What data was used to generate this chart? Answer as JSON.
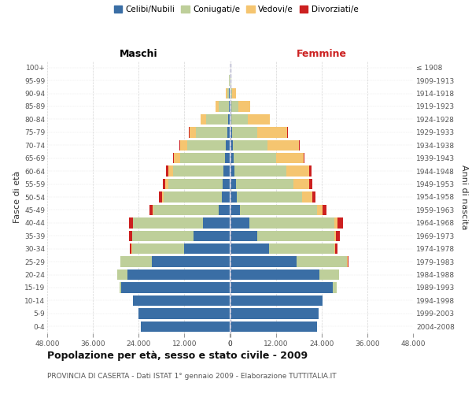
{
  "age_groups": [
    "100+",
    "95-99",
    "90-94",
    "85-89",
    "80-84",
    "75-79",
    "70-74",
    "65-69",
    "60-64",
    "55-59",
    "50-54",
    "45-49",
    "40-44",
    "35-39",
    "30-34",
    "25-29",
    "20-24",
    "15-19",
    "10-14",
    "5-9",
    "0-4"
  ],
  "birth_years": [
    "≤ 1908",
    "1909-1913",
    "1914-1918",
    "1919-1923",
    "1924-1928",
    "1929-1933",
    "1934-1938",
    "1939-1943",
    "1944-1948",
    "1949-1953",
    "1954-1958",
    "1959-1963",
    "1964-1968",
    "1969-1973",
    "1974-1978",
    "1979-1983",
    "1984-1988",
    "1989-1993",
    "1994-1998",
    "1999-2003",
    "2004-2008"
  ],
  "male_celibi": [
    100,
    140,
    220,
    380,
    550,
    800,
    1100,
    1400,
    1700,
    2000,
    2200,
    3000,
    7200,
    9500,
    12000,
    20500,
    27000,
    28500,
    25500,
    24000,
    23500
  ],
  "male_coniugati": [
    50,
    90,
    480,
    2600,
    5800,
    8200,
    10200,
    11800,
    13200,
    14200,
    15200,
    17200,
    18200,
    16200,
    13800,
    8200,
    2600,
    520,
    55,
    8,
    4
  ],
  "male_vedovi": [
    20,
    80,
    350,
    900,
    1400,
    1700,
    1900,
    1650,
    1350,
    850,
    560,
    230,
    110,
    55,
    22,
    11,
    5,
    2,
    1,
    0,
    0
  ],
  "male_divorziati": [
    4,
    10,
    22,
    35,
    55,
    85,
    110,
    220,
    520,
    620,
    720,
    820,
    1050,
    850,
    520,
    160,
    50,
    10,
    2,
    0,
    0
  ],
  "female_nubili": [
    100,
    150,
    190,
    290,
    380,
    490,
    680,
    880,
    1150,
    1480,
    1780,
    2550,
    5100,
    7100,
    10200,
    17500,
    23500,
    27000,
    24200,
    23200,
    22800
  ],
  "female_coniugate": [
    30,
    75,
    420,
    1900,
    4200,
    6700,
    9200,
    11200,
    13700,
    15200,
    17200,
    20200,
    22200,
    20200,
    17200,
    13200,
    5100,
    1050,
    105,
    10,
    4
  ],
  "female_vedove": [
    30,
    160,
    850,
    3100,
    5800,
    7800,
    8200,
    7200,
    5800,
    4100,
    2600,
    1550,
    820,
    420,
    200,
    85,
    21,
    5,
    1,
    0,
    0
  ],
  "female_divorziate": [
    4,
    10,
    22,
    38,
    65,
    105,
    160,
    260,
    620,
    720,
    920,
    1050,
    1550,
    1050,
    620,
    210,
    62,
    11,
    2,
    0,
    0
  ],
  "color_celibi": "#3A6EA5",
  "color_coniugati": "#BECF9A",
  "color_vedovi": "#F5C570",
  "color_divorziati": "#CC2020",
  "xlim": 48000,
  "xticks": [
    48000,
    36000,
    24000,
    12000,
    0
  ],
  "xtick_labels_male": [
    "48.000",
    "36.000",
    "24.000",
    "12.000",
    "0"
  ],
  "xtick_labels_female": [
    "0",
    "12.000",
    "24.000",
    "36.000",
    "48.000"
  ],
  "title": "Popolazione per età, sesso e stato civile - 2009",
  "subtitle": "PROVINCIA DI CASERTA - Dati ISTAT 1° gennaio 2009 - Elaborazione TUTTITALIA.IT",
  "ylabel_left": "Fasce di età",
  "ylabel_right": "Anni di nascita",
  "header_left": "Maschi",
  "header_right": "Femmine",
  "bg_color": "#ffffff",
  "grid_color": "#cccccc",
  "legend_labels": [
    "Celibi/Nubili",
    "Coniugati/e",
    "Vedovi/e",
    "Divorziati/e"
  ]
}
